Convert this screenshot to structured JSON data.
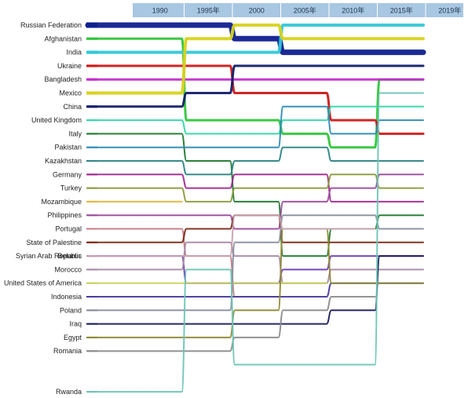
{
  "chart_data": {
    "type": "bump",
    "periods": [
      "1990",
      "1995年",
      "2000",
      "2005年",
      "2010年",
      "2015年",
      "2019年"
    ],
    "categories": [
      {
        "name": "Russian Federation",
        "color": "#0f1f8f",
        "weight": 7,
        "ranks": [
          1,
          1,
          2,
          3,
          3,
          3,
          null
        ]
      },
      {
        "name": "Afghanistan",
        "color": "#2fc63a",
        "weight": 3,
        "ranks": [
          2,
          8,
          8,
          9,
          10,
          5,
          null
        ]
      },
      {
        "name": "India",
        "color": "#33c8d8",
        "weight": 4,
        "ranks": [
          3,
          3,
          3,
          1,
          1,
          1,
          null
        ]
      },
      {
        "name": "Ukraine",
        "color": "#cc1a1a",
        "weight": 3,
        "ranks": [
          4,
          4,
          6,
          6,
          8,
          9,
          null
        ]
      },
      {
        "name": "Bangladesh",
        "color": "#c42ccf",
        "weight": 3,
        "ranks": [
          5,
          5,
          5,
          5,
          5,
          5,
          null
        ]
      },
      {
        "name": "Mexico",
        "color": "#d8d21e",
        "weight": 4,
        "ranks": [
          6,
          2,
          1,
          2,
          2,
          2,
          null
        ]
      },
      {
        "name": "China",
        "color": "#131d6a",
        "weight": 3,
        "ranks": [
          7,
          6,
          4,
          4,
          4,
          4,
          null
        ]
      },
      {
        "name": "United Kingdom",
        "color": "#30d8a8",
        "weight": 2,
        "ranks": [
          8,
          9,
          9,
          8,
          7,
          7,
          null
        ]
      },
      {
        "name": "Italy",
        "color": "#1f7a30",
        "weight": 2,
        "ranks": [
          9,
          11,
          14,
          18,
          16,
          15,
          null
        ]
      },
      {
        "name": "Pakistan",
        "color": "#2b8bb5",
        "weight": 2,
        "ranks": [
          10,
          10,
          10,
          7,
          9,
          8,
          null
        ]
      },
      {
        "name": "Kazakhstan",
        "color": "#2e8585",
        "weight": 2,
        "ranks": [
          11,
          12,
          11,
          10,
          11,
          11,
          null
        ]
      },
      {
        "name": "Germany",
        "color": "#a12a92",
        "weight": 2,
        "ranks": [
          12,
          13,
          12,
          12,
          14,
          14,
          null
        ]
      },
      {
        "name": "Turkey",
        "color": "#8a9b3c",
        "weight": 2,
        "ranks": [
          13,
          14,
          13,
          13,
          12,
          13,
          null
        ]
      },
      {
        "name": "Mozambique",
        "color": "#e6b53a",
        "weight": 2,
        "ranks": [
          14,
          null,
          null,
          null,
          null,
          null,
          null
        ]
      },
      {
        "name": "Philippines",
        "color": "#9b4d9b",
        "weight": 2,
        "ranks": [
          15,
          15,
          16,
          14,
          13,
          12,
          null
        ]
      },
      {
        "name": "Portugal",
        "color": "#c77a85",
        "weight": 2,
        "ranks": [
          16,
          18,
          21,
          null,
          null,
          null,
          null
        ]
      },
      {
        "name": "State of Palestine",
        "color": "#7a2a18",
        "weight": 2,
        "ranks": [
          17,
          16,
          15,
          17,
          17,
          17,
          null
        ]
      },
      {
        "name": "Belarus",
        "color": "#6f3fb8",
        "weight": 2,
        "ranks": [
          18,
          20,
          20,
          19,
          18,
          18,
          null
        ]
      },
      {
        "name": "Morocco",
        "color": "#a58aa5",
        "weight": 2,
        "ranks": [
          19,
          17,
          18,
          20,
          19,
          19,
          null
        ]
      },
      {
        "name": "United States of America",
        "color": "#c8d25a",
        "weight": 2,
        "ranks": [
          20,
          20,
          20,
          20,
          null,
          null,
          null
        ]
      },
      {
        "name": "Indonesia",
        "color": "#4a3aa0",
        "weight": 2,
        "ranks": [
          21,
          21,
          21,
          21,
          20,
          20,
          null
        ]
      },
      {
        "name": "Poland",
        "color": "#8a8fa0",
        "weight": 2,
        "ranks": [
          22,
          22,
          17,
          15,
          15,
          16,
          null
        ]
      },
      {
        "name": "Iraq",
        "color": "#1c1e5c",
        "weight": 2,
        "ranks": [
          23,
          23,
          23,
          23,
          22,
          18,
          null
        ]
      },
      {
        "name": "Egypt",
        "color": "#8d8a35",
        "weight": 2,
        "ranks": [
          24,
          24,
          22,
          16,
          20,
          20,
          null
        ]
      },
      {
        "name": "Romania",
        "color": "#8c8c8c",
        "weight": 2,
        "ranks": [
          25,
          25,
          24,
          22,
          21,
          null,
          null
        ]
      },
      {
        "name": "Syrian Arab Republic",
        "color": "#c7a3b0",
        "weight": 2,
        "ranks": [
          null,
          18,
          15,
          16,
          16,
          null,
          null
        ]
      },
      {
        "name": "Rwanda",
        "color": "#6ec5b5",
        "weight": 2,
        "ranks": [
          28,
          19,
          26,
          26,
          26,
          6,
          null
        ]
      }
    ],
    "legend": "none",
    "grid": false
  }
}
